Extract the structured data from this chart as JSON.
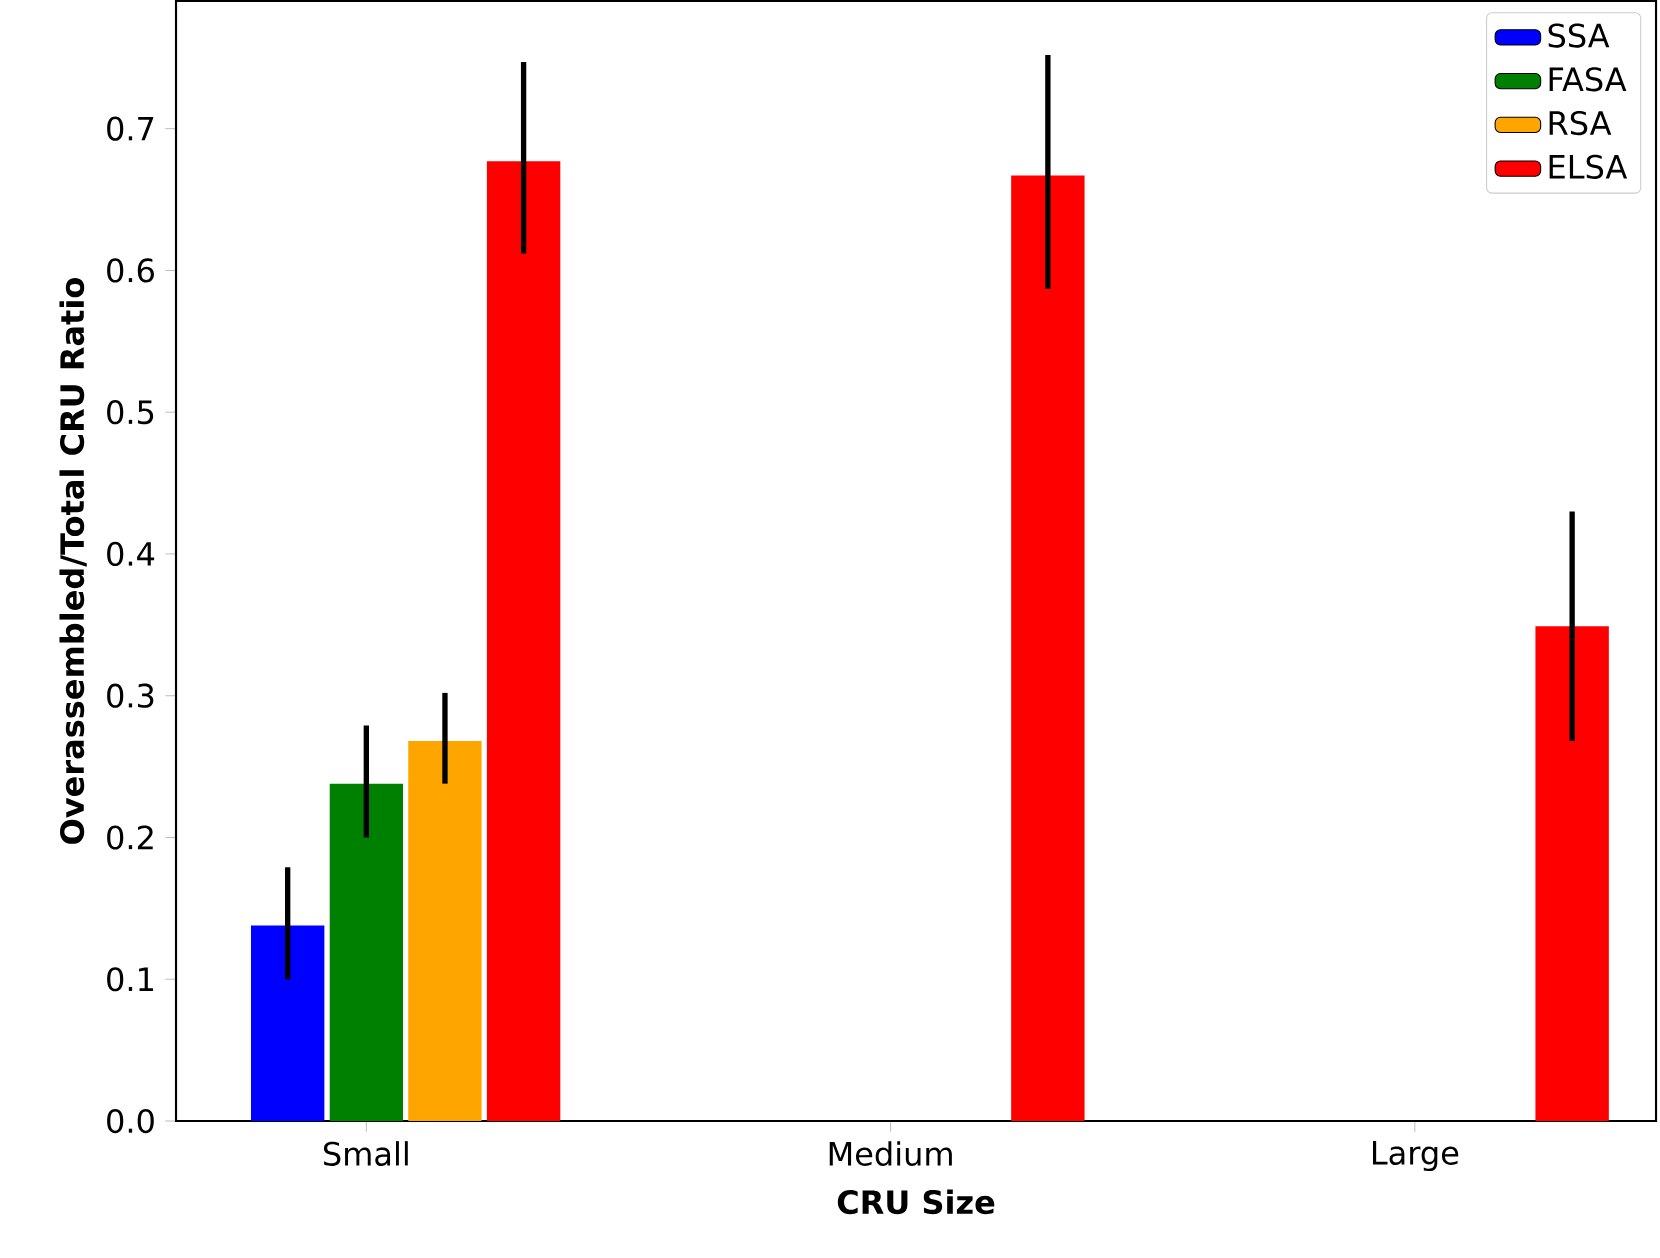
{
  "chart_data": {
    "type": "bar",
    "xlabel": "CRU Size",
    "ylabel": "Overassembled/Total CRU Ratio",
    "categories": [
      "Small",
      "Medium",
      "Large"
    ],
    "series": [
      {
        "name": "SSA",
        "color": "#0000ff",
        "values": [
          0.138,
          null,
          null
        ],
        "errors": [
          [
            0.1,
            0.179
          ],
          null,
          null
        ]
      },
      {
        "name": "FASA",
        "color": "#008000",
        "values": [
          0.238,
          null,
          null
        ],
        "errors": [
          [
            0.2,
            0.279
          ],
          null,
          null
        ]
      },
      {
        "name": "RSA",
        "color": "#ffa500",
        "values": [
          0.268,
          null,
          null
        ],
        "errors": [
          [
            0.238,
            0.302
          ],
          null,
          null
        ]
      },
      {
        "name": "ELSA",
        "color": "#ff0000",
        "values": [
          0.677,
          0.667,
          0.349
        ],
        "errors": [
          [
            0.612,
            0.747
          ],
          [
            0.587,
            0.752
          ],
          [
            0.268,
            0.43
          ]
        ]
      }
    ],
    "ylim": [
      0,
      0.79
    ],
    "yticks": [
      {
        "value": 0,
        "label": "0.0"
      },
      0.1,
      0.2,
      0.3,
      0.4,
      0.5,
      0.6,
      0.7
    ],
    "grid": false,
    "legend": "top right"
  }
}
